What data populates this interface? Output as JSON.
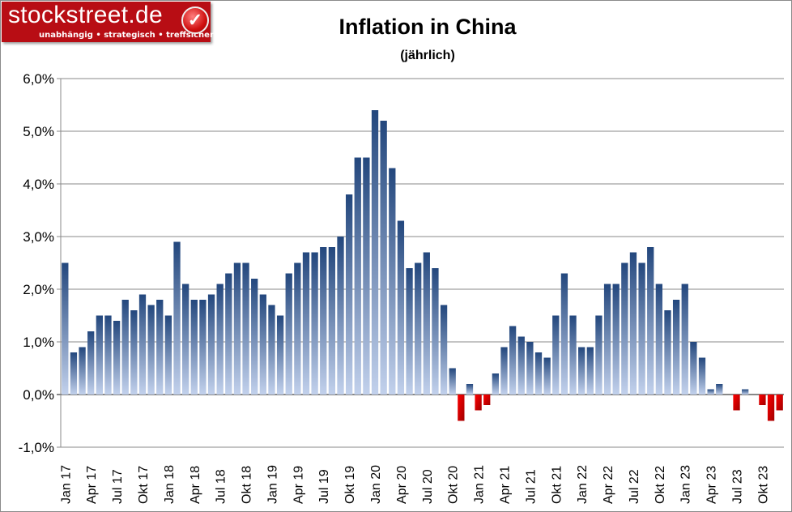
{
  "logo": {
    "name": "stockstreet.de",
    "tagline": "unabhängig • strategisch • treffsicher",
    "icon": "checkmark-icon"
  },
  "colors": {
    "positive": "#23477d",
    "positive_light": "#c2d1ec",
    "negative": "#ff0000",
    "negative_dark": "#a00000",
    "grid": "#888888"
  },
  "chart_data": {
    "type": "bar",
    "title": "Inflation in China",
    "subtitle": "(jährlich)",
    "xlabel": "",
    "ylabel": "",
    "ylim": [
      -1.0,
      6.0
    ],
    "yticks": [
      -1.0,
      0.0,
      1.0,
      2.0,
      3.0,
      4.0,
      5.0,
      6.0
    ],
    "ytick_labels": [
      "-1,0%",
      "0,0%",
      "1,0%",
      "2,0%",
      "3,0%",
      "4,0%",
      "5,0%",
      "6,0%"
    ],
    "grid": true,
    "categories": [
      "Jan 17",
      "Feb 17",
      "Mär 17",
      "Apr 17",
      "Mai 17",
      "Jun 17",
      "Jul 17",
      "Aug 17",
      "Sep 17",
      "Okt 17",
      "Nov 17",
      "Dez 17",
      "Jan 18",
      "Feb 18",
      "Mär 18",
      "Apr 18",
      "Mai 18",
      "Jun 18",
      "Jul 18",
      "Aug 18",
      "Sep 18",
      "Okt 18",
      "Nov 18",
      "Dez 18",
      "Jan 19",
      "Feb 19",
      "Mär 19",
      "Apr 19",
      "Mai 19",
      "Jun 19",
      "Jul 19",
      "Aug 19",
      "Sep 19",
      "Okt 19",
      "Nov 19",
      "Dez 19",
      "Jan 20",
      "Feb 20",
      "Mär 20",
      "Apr 20",
      "Mai 20",
      "Jun 20",
      "Jul 20",
      "Aug 20",
      "Sep 20",
      "Okt 20",
      "Nov 20",
      "Dez 20",
      "Jan 21",
      "Feb 21",
      "Mär 21",
      "Apr 21",
      "Mai 21",
      "Jun 21",
      "Jul 21",
      "Aug 21",
      "Sep 21",
      "Okt 21",
      "Nov 21",
      "Dez 21",
      "Jan 22",
      "Feb 22",
      "Mär 22",
      "Apr 22",
      "Mai 22",
      "Jun 22",
      "Jul 22",
      "Aug 22",
      "Sep 22",
      "Okt 22",
      "Nov 22",
      "Dez 22",
      "Jan 23",
      "Feb 23",
      "Mär 23",
      "Apr 23",
      "Mai 23",
      "Jun 23",
      "Jul 23",
      "Aug 23",
      "Sep 23",
      "Okt 23",
      "Nov 23",
      "Dez 23"
    ],
    "xtick_labels": [
      "Jan 17",
      "Apr 17",
      "Jul 17",
      "Okt 17",
      "Jan 18",
      "Apr 18",
      "Jul 18",
      "Okt 18",
      "Jan 19",
      "Apr 19",
      "Jul 19",
      "Okt 19",
      "Jan 20",
      "Apr 20",
      "Jul 20",
      "Okt 20",
      "Jan 21",
      "Apr 21",
      "Jul 21",
      "Okt 21",
      "Jan 22",
      "Apr 22",
      "Jul 22",
      "Okt 22",
      "Jan 23",
      "Apr 23",
      "Jul 23",
      "Okt 23"
    ],
    "values": [
      2.5,
      0.8,
      0.9,
      1.2,
      1.5,
      1.5,
      1.4,
      1.8,
      1.6,
      1.9,
      1.7,
      1.8,
      1.5,
      2.9,
      2.1,
      1.8,
      1.8,
      1.9,
      2.1,
      2.3,
      2.5,
      2.5,
      2.2,
      1.9,
      1.7,
      1.5,
      2.3,
      2.5,
      2.7,
      2.7,
      2.8,
      2.8,
      3.0,
      3.8,
      4.5,
      4.5,
      5.4,
      5.2,
      4.3,
      3.3,
      2.4,
      2.5,
      2.7,
      2.4,
      1.7,
      0.5,
      -0.5,
      0.2,
      -0.3,
      -0.2,
      0.4,
      0.9,
      1.3,
      1.1,
      1.0,
      0.8,
      0.7,
      1.5,
      2.3,
      1.5,
      0.9,
      0.9,
      1.5,
      2.1,
      2.1,
      2.5,
      2.7,
      2.5,
      2.8,
      2.1,
      1.6,
      1.8,
      2.1,
      1.0,
      0.7,
      0.1,
      0.2,
      0.0,
      -0.3,
      0.1,
      0.0,
      -0.2,
      -0.5,
      -0.3
    ]
  }
}
